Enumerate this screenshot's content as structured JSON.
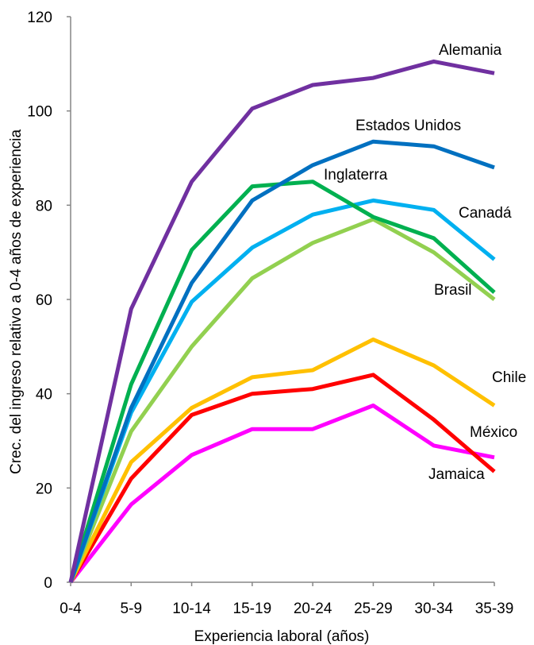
{
  "chart_data": {
    "type": "line",
    "xlabel": "Experiencia laboral (años)",
    "ylabel": "Crec. del ingreso relativo a 0-4 años de experiencia",
    "categories": [
      "0-4",
      "5-9",
      "10-14",
      "15-19",
      "20-24",
      "25-29",
      "30-34",
      "35-39"
    ],
    "ylim": [
      0,
      120
    ],
    "yticks": [
      0,
      20,
      40,
      60,
      80,
      100,
      120
    ],
    "grid": false,
    "legend": "inline labels",
    "series": [
      {
        "name": "Alemania",
        "color": "#7030A0",
        "values": [
          0,
          58,
          85,
          100.5,
          105.5,
          107,
          110.5,
          108
        ]
      },
      {
        "name": "Estados Unidos",
        "color": "#0070C0",
        "values": [
          0,
          37,
          63.5,
          81,
          88.5,
          93.5,
          92.5,
          88
        ]
      },
      {
        "name": "Inglaterra",
        "color": "#00B050",
        "values": [
          0,
          42,
          70.5,
          84,
          85,
          77.5,
          73,
          61.5
        ]
      },
      {
        "name": "Canadá",
        "color": "#00B0F0",
        "values": [
          0,
          36,
          59.5,
          71,
          78,
          81,
          79,
          68.5
        ]
      },
      {
        "name": "Brasil",
        "color": "#92D050",
        "values": [
          0,
          32,
          50,
          64.5,
          72,
          77,
          70,
          60
        ]
      },
      {
        "name": "Chile",
        "color": "#FFC000",
        "values": [
          0,
          25.5,
          37,
          43.5,
          45,
          51.5,
          46,
          37.5
        ]
      },
      {
        "name": "México",
        "color": "#FF0000",
        "values": [
          0,
          22,
          35.5,
          40,
          41,
          44,
          34.5,
          23.5
        ]
      },
      {
        "name": "Jamaica",
        "color": "#FF00FF",
        "values": [
          0,
          16.5,
          27,
          32.5,
          32.5,
          37.5,
          29,
          26.5
        ]
      }
    ]
  }
}
